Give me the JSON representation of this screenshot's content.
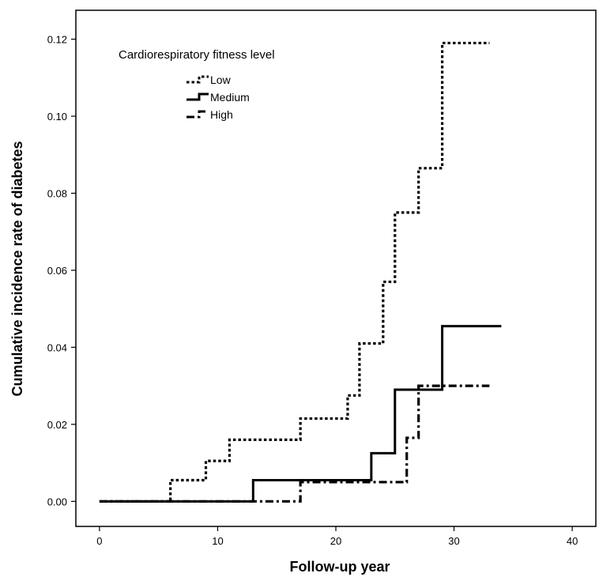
{
  "chart_data": {
    "type": "line",
    "step": true,
    "xlabel": "Follow-up year",
    "ylabel": "Cumulative incidence rate of diabetes",
    "xlim": [
      -2,
      42
    ],
    "ylim": [
      -0.0065,
      0.1275
    ],
    "xticks": [
      0,
      10,
      20,
      30,
      40
    ],
    "yticks": [
      0.0,
      0.02,
      0.04,
      0.06,
      0.08,
      0.1,
      0.12
    ],
    "ytick_labels": [
      "0.00",
      "0.02",
      "0.04",
      "0.06",
      "0.08",
      "0.10",
      "0.12"
    ],
    "grid": false,
    "legend": {
      "title": "Cardiorespiratory fitness level",
      "position": "top-left"
    },
    "series": [
      {
        "name": "Low",
        "line_style": "dotted",
        "x": [
          0,
          6,
          9,
          11,
          17,
          21,
          22,
          24,
          25,
          27,
          29,
          33
        ],
        "y": [
          0,
          0.0055,
          0.0105,
          0.016,
          0.0215,
          0.0275,
          0.041,
          0.057,
          0.075,
          0.0865,
          0.119,
          0.119
        ]
      },
      {
        "name": "Medium",
        "line_style": "solid",
        "x": [
          0,
          13,
          23,
          25,
          29,
          34
        ],
        "y": [
          0,
          0.0055,
          0.0125,
          0.029,
          0.0455,
          0.0455
        ]
      },
      {
        "name": "High",
        "line_style": "dashdot",
        "x": [
          0,
          17,
          26,
          27,
          33
        ],
        "y": [
          0,
          0.005,
          0.0165,
          0.03,
          0.03
        ]
      }
    ]
  }
}
